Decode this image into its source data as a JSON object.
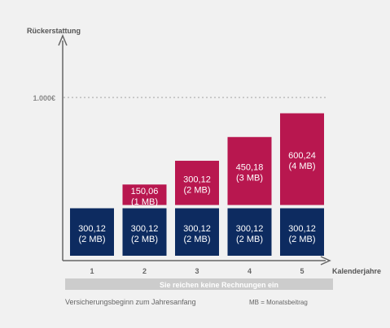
{
  "chart_data": {
    "type": "bar",
    "stacked": true,
    "ylabel": "Rückerstattung",
    "xlabel": "Kalenderjahre",
    "reference_line": {
      "value": 1000,
      "label": "1.000€"
    },
    "categories": [
      "1",
      "2",
      "3",
      "4",
      "5"
    ],
    "series": [
      {
        "name": "",
        "color": "#0d2b60",
        "values": [
          300.12,
          300.12,
          300.12,
          300.12,
          300.12
        ],
        "labels": [
          [
            "300,12",
            "(2 MB)"
          ],
          [
            "300,12",
            "(2 MB)"
          ],
          [
            "300,12",
            "(2 MB)"
          ],
          [
            "300,12",
            "(2 MB)"
          ],
          [
            "300,12",
            "(2 MB)"
          ]
        ]
      },
      {
        "name": "",
        "color": "#b8174f",
        "values": [
          0,
          150.06,
          300.12,
          450.18,
          600.24
        ],
        "labels": [
          [
            "",
            ""
          ],
          [
            "150,06",
            "(1 MB)"
          ],
          [
            "300,12",
            "(2 MB)"
          ],
          [
            "450,18",
            "(3 MB)"
          ],
          [
            "600,24",
            "(4 MB)"
          ]
        ]
      }
    ],
    "banner": "Sie reichen keine Rechnungen ein",
    "footnote_left": "Versicherungsbeginn zum Jahresanfang",
    "footnote_right": "MB = Monatsbeitrag",
    "grid": false
  }
}
